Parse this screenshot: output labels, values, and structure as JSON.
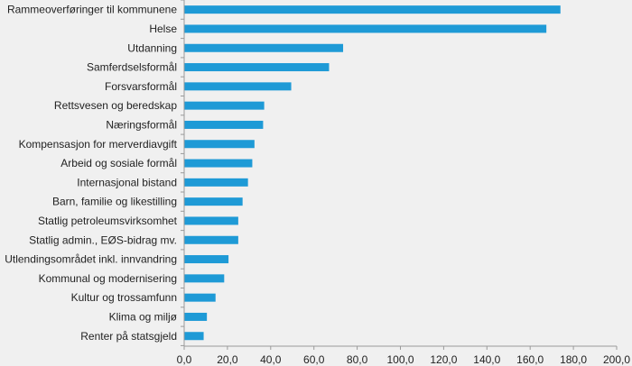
{
  "chart_data": {
    "type": "bar",
    "orientation": "horizontal",
    "title": "",
    "xlabel": "",
    "ylabel": "",
    "xlim": [
      0,
      200
    ],
    "x_ticks": [
      "0,0",
      "20,0",
      "40,0",
      "60,0",
      "80,0",
      "100,0",
      "120,0",
      "140,0",
      "160,0",
      "180,0",
      "200,0"
    ],
    "grid": false,
    "bar_color": "#1e9ad6",
    "background": "#f0f0f0",
    "categories": [
      "Rammeoverføringer til kommunene",
      "Helse",
      "Utdanning",
      "Samferdselsformål",
      "Forsvarsformål",
      "Rettsvesen og beredskap",
      "Næringsformål",
      "Kompensasjon for merverdiavgift",
      "Arbeid og sosiale formål",
      "Internasjonal bistand",
      "Barn, familie og likestilling",
      "Statlig petroleumsvirksomhet",
      "Statlig admin., EØS-bidrag mv.",
      "Utlendingsområdet inkl. innvandring",
      "Kommunal og modernisering",
      "Kultur og trossamfunn",
      "Klima og miljø",
      "Renter på statsgjeld"
    ],
    "values": [
      174.0,
      167.5,
      73.5,
      67.0,
      49.5,
      37.0,
      36.5,
      32.5,
      31.5,
      29.5,
      27.0,
      25.0,
      25.0,
      20.5,
      18.5,
      14.5,
      10.5,
      9.0
    ]
  }
}
